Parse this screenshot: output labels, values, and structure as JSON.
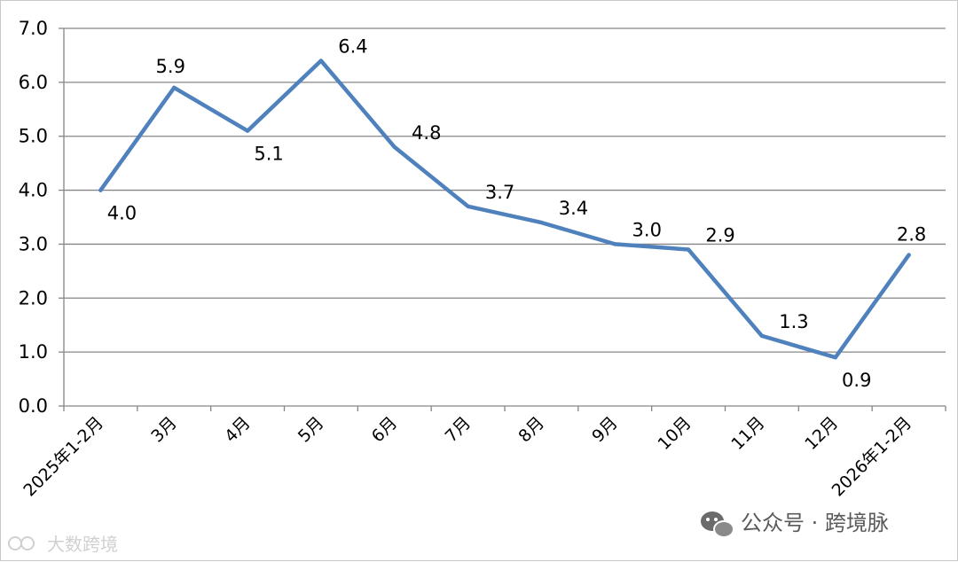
{
  "chart_data": {
    "type": "line",
    "categories": [
      "2025年1-2月",
      "3月",
      "4月",
      "5月",
      "6月",
      "7月",
      "8月",
      "9月",
      "10月",
      "11月",
      "12月",
      "2026年1-2月"
    ],
    "values": [
      4.0,
      5.9,
      5.1,
      6.4,
      4.8,
      3.7,
      3.4,
      3.0,
      2.9,
      1.3,
      0.9,
      2.8
    ],
    "value_labels": [
      "4.0",
      "5.9",
      "5.1",
      "6.4",
      "4.8",
      "3.7",
      "3.4",
      "3.0",
      "2.9",
      "1.3",
      "0.9",
      "2.8"
    ],
    "yticks": [
      "0.0",
      "1.0",
      "2.0",
      "3.0",
      "4.0",
      "5.0",
      "6.0",
      "7.0"
    ],
    "ylim": [
      0,
      7
    ],
    "grid": true,
    "line_color": "#4f81bd",
    "grid_color": "#868686"
  },
  "watermark": {
    "right": "公众号 · 跨境脉",
    "left": "大数跨境"
  }
}
